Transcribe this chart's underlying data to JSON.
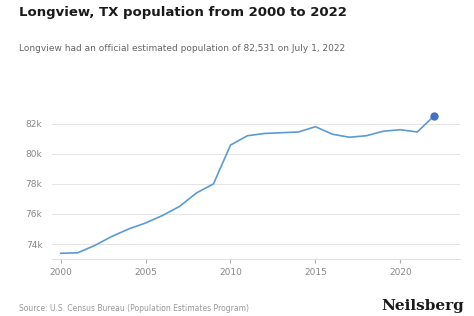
{
  "title": "Longview, TX population from 2000 to 2022",
  "subtitle": "Longview had an official estimated population of 82,531 on July 1, 2022",
  "source": "Source: U.S. Census Bureau (Population Estimates Program)",
  "brand": "Neilsberg",
  "years": [
    2000,
    2001,
    2002,
    2003,
    2004,
    2005,
    2006,
    2007,
    2008,
    2009,
    2010,
    2011,
    2012,
    2013,
    2014,
    2015,
    2016,
    2017,
    2018,
    2019,
    2020,
    2021,
    2022
  ],
  "population": [
    73386,
    73419,
    73900,
    74500,
    75000,
    75400,
    75900,
    76500,
    77400,
    78000,
    80578,
    81200,
    81350,
    81400,
    81450,
    81800,
    81300,
    81100,
    81200,
    81500,
    81600,
    81450,
    82531
  ],
  "line_color": "#5b9bd5",
  "dot_color": "#4472c4",
  "background_color": "#ffffff",
  "title_fontsize": 9.5,
  "subtitle_fontsize": 6.5,
  "source_fontsize": 5.5,
  "brand_fontsize": 11,
  "grid_color": "#e0e0e0",
  "tick_color": "#aaaaaa",
  "tick_label_color": "#888888",
  "ylim": [
    73000,
    83500
  ],
  "yticks": [
    74000,
    76000,
    78000,
    80000,
    82000
  ],
  "ytick_labels": [
    "74k",
    "76k",
    "78k",
    "80k",
    "82k"
  ],
  "xticks": [
    2000,
    2005,
    2010,
    2015,
    2020
  ],
  "xtick_labels": [
    "2000",
    "2005",
    "2010",
    "2015",
    "2020"
  ]
}
